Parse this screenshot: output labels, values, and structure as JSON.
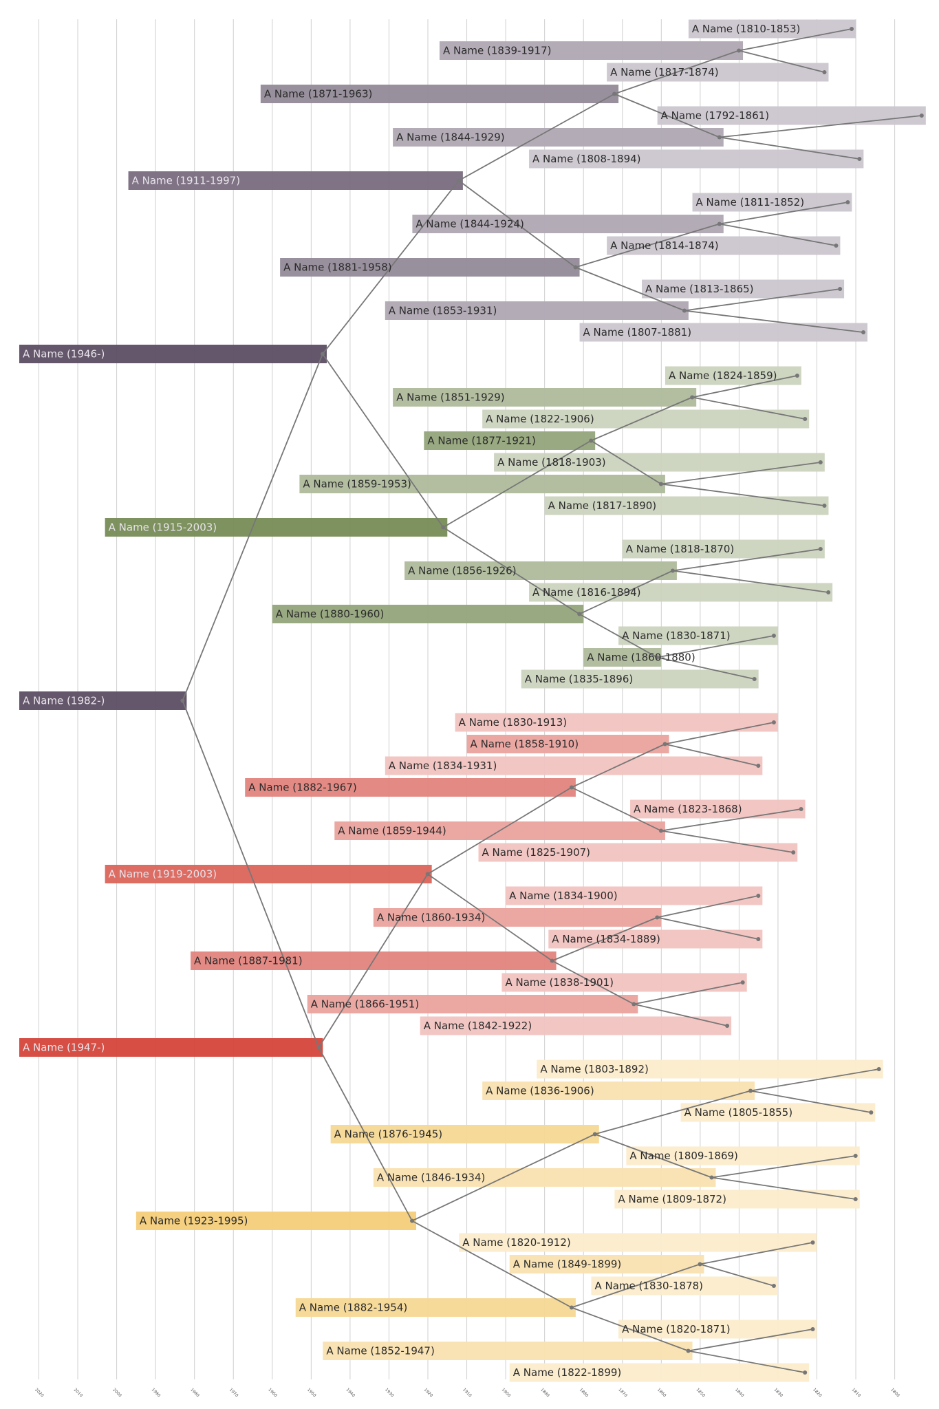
{
  "chart_data": {
    "type": "timeline",
    "title": "",
    "xlabel": "",
    "ylabel": "",
    "x_axis": "years, reversed (recent on left)",
    "xlim": [
      2025,
      1790
    ],
    "grid": true,
    "ticks": [
      "2020",
      "2010",
      "2000",
      "1990",
      "1980",
      "1970",
      "1960",
      "1950",
      "1940",
      "1930",
      "1920",
      "1910",
      "1900",
      "1890",
      "1880",
      "1870",
      "1860",
      "1850",
      "1840",
      "1830",
      "1820",
      "1810",
      "1800"
    ],
    "palette": {
      "purple": "#5c4e63",
      "green": "#5b7535",
      "red": "#d4443a",
      "gold": "#f2c45e",
      "line": "#777777"
    },
    "people": [
      {
        "label": "A Name (1810-1853)",
        "start": 1810,
        "end": 1853,
        "branch": "purple"
      },
      {
        "label": "A Name (1839-1917)",
        "start": 1839,
        "end": 1917,
        "branch": "purple"
      },
      {
        "label": "A Name (1817-1874)",
        "start": 1817,
        "end": 1874,
        "branch": "purple"
      },
      {
        "label": "A Name (1871-1963)",
        "start": 1871,
        "end": 1963,
        "branch": "purple"
      },
      {
        "label": "A Name (1792-1861)",
        "start": 1792,
        "end": 1861,
        "branch": "purple"
      },
      {
        "label": "A Name (1844-1929)",
        "start": 1844,
        "end": 1929,
        "branch": "purple"
      },
      {
        "label": "A Name (1808-1894)",
        "start": 1808,
        "end": 1894,
        "branch": "purple"
      },
      {
        "label": "A Name (1911-1997)",
        "start": 1911,
        "end": 1997,
        "branch": "purple"
      },
      {
        "label": "A Name (1811-1852)",
        "start": 1811,
        "end": 1852,
        "branch": "purple"
      },
      {
        "label": "A Name (1844-1924)",
        "start": 1844,
        "end": 1924,
        "branch": "purple"
      },
      {
        "label": "A Name (1814-1874)",
        "start": 1814,
        "end": 1874,
        "branch": "purple"
      },
      {
        "label": "A Name (1881-1958)",
        "start": 1881,
        "end": 1958,
        "branch": "purple"
      },
      {
        "label": "A Name (1813-1865)",
        "start": 1813,
        "end": 1865,
        "branch": "purple"
      },
      {
        "label": "A Name (1853-1931)",
        "start": 1853,
        "end": 1931,
        "branch": "purple"
      },
      {
        "label": "A Name (1807-1881)",
        "start": 1807,
        "end": 1881,
        "branch": "purple"
      },
      {
        "label": "A Name (1946-)",
        "start": 1946,
        "end": null,
        "branch": "purple"
      },
      {
        "label": "A Name (1824-1859)",
        "start": 1824,
        "end": 1859,
        "branch": "green"
      },
      {
        "label": "A Name (1851-1929)",
        "start": 1851,
        "end": 1929,
        "branch": "green"
      },
      {
        "label": "A Name (1822-1906)",
        "start": 1822,
        "end": 1906,
        "branch": "green"
      },
      {
        "label": "A Name (1877-1921)",
        "start": 1877,
        "end": 1921,
        "branch": "green"
      },
      {
        "label": "A Name (1818-1903)",
        "start": 1818,
        "end": 1903,
        "branch": "green"
      },
      {
        "label": "A Name (1859-1953)",
        "start": 1859,
        "end": 1953,
        "branch": "green"
      },
      {
        "label": "A Name (1817-1890)",
        "start": 1817,
        "end": 1890,
        "branch": "green"
      },
      {
        "label": "A Name (1915-2003)",
        "start": 1915,
        "end": 2003,
        "branch": "green"
      },
      {
        "label": "A Name (1818-1870)",
        "start": 1818,
        "end": 1870,
        "branch": "green"
      },
      {
        "label": "A Name (1856-1926)",
        "start": 1856,
        "end": 1926,
        "branch": "green"
      },
      {
        "label": "A Name (1816-1894)",
        "start": 1816,
        "end": 1894,
        "branch": "green"
      },
      {
        "label": "A Name (1880-1960)",
        "start": 1880,
        "end": 1960,
        "branch": "green"
      },
      {
        "label": "A Name (1830-1871)",
        "start": 1830,
        "end": 1871,
        "branch": "green"
      },
      {
        "label": "A Name (1860-1880)",
        "start": 1860,
        "end": 1880,
        "branch": "green"
      },
      {
        "label": "A Name (1835-1896)",
        "start": 1835,
        "end": 1896,
        "branch": "green"
      },
      {
        "label": "A Name (1982-)",
        "start": 1982,
        "end": null,
        "branch": "purple"
      },
      {
        "label": "A Name (1830-1913)",
        "start": 1830,
        "end": 1913,
        "branch": "red"
      },
      {
        "label": "A Name (1858-1910)",
        "start": 1858,
        "end": 1910,
        "branch": "red"
      },
      {
        "label": "A Name (1834-1931)",
        "start": 1834,
        "end": 1931,
        "branch": "red"
      },
      {
        "label": "A Name (1882-1967)",
        "start": 1882,
        "end": 1967,
        "branch": "red"
      },
      {
        "label": "A Name (1823-1868)",
        "start": 1823,
        "end": 1868,
        "branch": "red"
      },
      {
        "label": "A Name (1859-1944)",
        "start": 1859,
        "end": 1944,
        "branch": "red"
      },
      {
        "label": "A Name (1825-1907)",
        "start": 1825,
        "end": 1907,
        "branch": "red"
      },
      {
        "label": "A Name (1919-2003)",
        "start": 1919,
        "end": 2003,
        "branch": "red"
      },
      {
        "label": "A Name (1834-1900)",
        "start": 1834,
        "end": 1900,
        "branch": "red"
      },
      {
        "label": "A Name (1860-1934)",
        "start": 1860,
        "end": 1934,
        "branch": "red"
      },
      {
        "label": "A Name (1834-1889)",
        "start": 1834,
        "end": 1889,
        "branch": "red"
      },
      {
        "label": "A Name (1887-1981)",
        "start": 1887,
        "end": 1981,
        "branch": "red"
      },
      {
        "label": "A Name (1838-1901)",
        "start": 1838,
        "end": 1901,
        "branch": "red"
      },
      {
        "label": "A Name (1866-1951)",
        "start": 1866,
        "end": 1951,
        "branch": "red"
      },
      {
        "label": "A Name (1842-1922)",
        "start": 1842,
        "end": 1922,
        "branch": "red"
      },
      {
        "label": "A Name (1947-)",
        "start": 1947,
        "end": null,
        "branch": "red"
      },
      {
        "label": "A Name (1803-1892)",
        "start": 1803,
        "end": 1892,
        "branch": "gold"
      },
      {
        "label": "A Name (1836-1906)",
        "start": 1836,
        "end": 1906,
        "branch": "gold"
      },
      {
        "label": "A Name (1805-1855)",
        "start": 1805,
        "end": 1855,
        "branch": "gold"
      },
      {
        "label": "A Name (1876-1945)",
        "start": 1876,
        "end": 1945,
        "branch": "gold"
      },
      {
        "label": "A Name (1809-1869)",
        "start": 1809,
        "end": 1869,
        "branch": "gold"
      },
      {
        "label": "A Name (1846-1934)",
        "start": 1846,
        "end": 1934,
        "branch": "gold"
      },
      {
        "label": "A Name (1809-1872)",
        "start": 1809,
        "end": 1872,
        "branch": "gold"
      },
      {
        "label": "A Name (1923-1995)",
        "start": 1923,
        "end": 1995,
        "branch": "gold"
      },
      {
        "label": "A Name (1820-1912)",
        "start": 1820,
        "end": 1912,
        "branch": "gold"
      },
      {
        "label": "A Name (1849-1899)",
        "start": 1849,
        "end": 1899,
        "branch": "gold"
      },
      {
        "label": "A Name (1830-1878)",
        "start": 1830,
        "end": 1878,
        "branch": "gold"
      },
      {
        "label": "A Name (1882-1954)",
        "start": 1882,
        "end": 1954,
        "branch": "gold"
      },
      {
        "label": "A Name (1820-1871)",
        "start": 1820,
        "end": 1871,
        "branch": "gold"
      },
      {
        "label": "A Name (1852-1947)",
        "start": 1852,
        "end": 1947,
        "branch": "gold"
      },
      {
        "label": "A Name (1822-1899)",
        "start": 1822,
        "end": 1899,
        "branch": "gold"
      }
    ]
  }
}
